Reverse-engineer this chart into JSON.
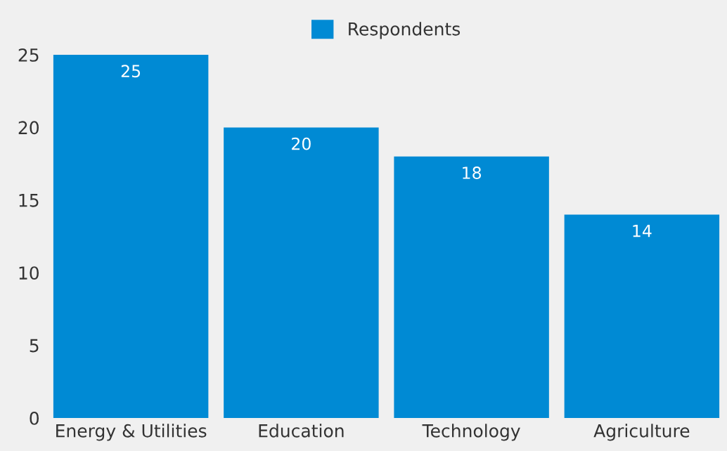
{
  "chart_data": {
    "type": "bar",
    "categories": [
      "Energy & Utilities",
      "Education",
      "Technology",
      "Agriculture"
    ],
    "series": [
      {
        "name": "Respondents",
        "color": "#008ad4",
        "values": [
          25,
          20,
          18,
          14
        ]
      }
    ],
    "ylim": [
      0,
      25
    ],
    "yticks": [
      0,
      5,
      10,
      15,
      20,
      25
    ],
    "grid": false,
    "legend": "top",
    "data_labels": true
  }
}
